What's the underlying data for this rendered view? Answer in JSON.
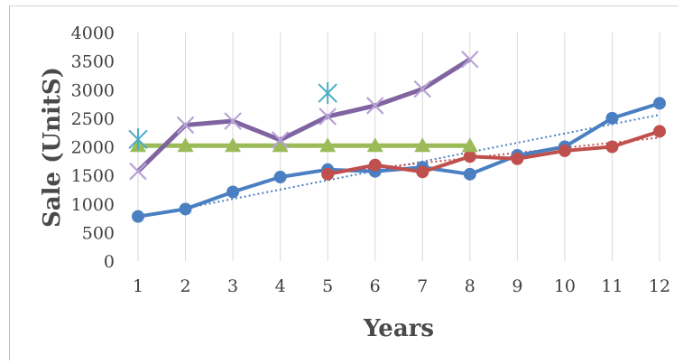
{
  "chart_data": {
    "type": "line",
    "title": "",
    "xlabel": "Years",
    "ylabel": "Sale (UnitS)",
    "x": [
      1,
      2,
      3,
      4,
      5,
      6,
      7,
      8,
      9,
      10,
      11,
      12
    ],
    "xticks": [
      "1",
      "2",
      "3",
      "4",
      "5",
      "6",
      "7",
      "8",
      "9",
      "10",
      "11",
      "12"
    ],
    "yticks": [
      "0",
      "500",
      "1000",
      "1500",
      "2000",
      "2500",
      "3000",
      "3500",
      "4000"
    ],
    "ylim": [
      0,
      4000
    ],
    "grid": "vertical",
    "legend": "none",
    "series": [
      {
        "color": "#4a7fc1",
        "marker": "circle",
        "x": [
          1,
          2,
          3,
          4,
          5,
          6,
          7,
          8,
          9,
          10,
          11,
          12
        ],
        "values": [
          780,
          910,
          1210,
          1470,
          1600,
          1570,
          1640,
          1520,
          1850,
          2000,
          2500,
          2760
        ]
      },
      {
        "color": "#c0504d",
        "marker": "circle",
        "x": [
          5,
          6,
          7,
          8,
          9,
          10,
          11,
          12
        ],
        "values": [
          1520,
          1680,
          1560,
          1830,
          1790,
          1930,
          2000,
          2270
        ]
      },
      {
        "color": "#9bbb59",
        "marker": "triangle",
        "x": [
          1,
          2,
          3,
          4,
          5,
          6,
          7,
          8
        ],
        "values": [
          2020,
          2020,
          2020,
          2020,
          2020,
          2020,
          2020,
          2020
        ]
      },
      {
        "color": "#8064a2",
        "marker": "x",
        "x": [
          1,
          2,
          3,
          4,
          5,
          6,
          7,
          8
        ],
        "values": [
          1570,
          2380,
          2450,
          2120,
          2530,
          2720,
          3010,
          3530
        ]
      },
      {
        "color": "#4bacc6",
        "marker": "star",
        "x": [
          1,
          5
        ],
        "values": [
          2130,
          2940
        ]
      }
    ],
    "trendlines": [
      {
        "color": "#4a7fc1",
        "style": "dotted",
        "from": [
          1,
          760
        ],
        "to": [
          12,
          2560
        ]
      },
      {
        "color": "#c0504d",
        "style": "dotted",
        "from": [
          5,
          1540
        ],
        "to": [
          12,
          2160
        ]
      }
    ]
  }
}
